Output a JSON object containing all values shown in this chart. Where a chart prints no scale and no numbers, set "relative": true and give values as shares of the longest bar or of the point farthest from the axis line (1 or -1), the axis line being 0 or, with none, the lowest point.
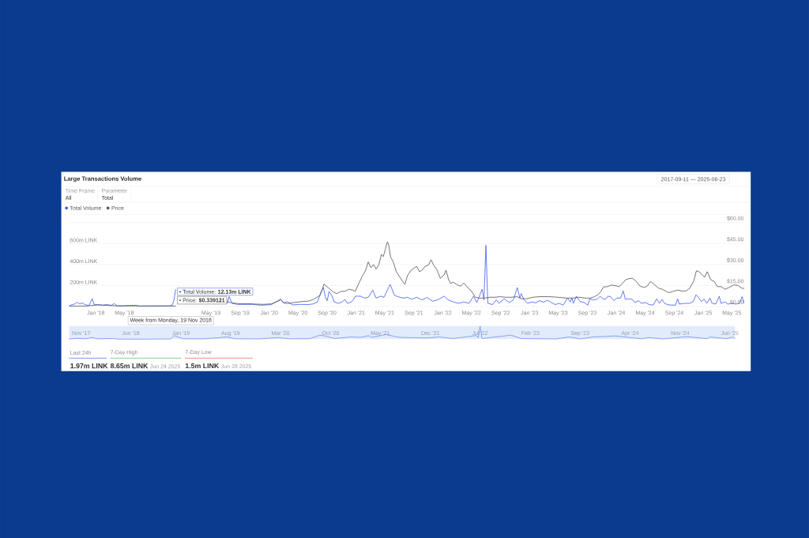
{
  "chart_data": [
    {
      "type": "line",
      "title": "Large Transactions Volume",
      "legend": "top left",
      "grid": "y",
      "annotations": [
        "Time Frame",
        "All",
        "Parameter",
        "Total",
        "2017-09-11 — 2025-06-23",
        "• Total Volume: **12.13m LINK**",
        "• Price: **$0.339121**",
        "Week from Monday, 19 Nov 2018"
      ],
      "xlim": [
        "2017-09-11",
        "2025-06-23"
      ],
      "xticks": [
        {
          "value": "2018-01",
          "label": "Jan '18"
        },
        {
          "value": "2018-05",
          "label": "May '18"
        },
        {
          "value": "2019-05",
          "label": "May '19"
        },
        {
          "value": "2019-09",
          "label": "Sep '19"
        },
        {
          "value": "2020-01",
          "label": "Jan '20"
        },
        {
          "value": "2020-05",
          "label": "May '20"
        },
        {
          "value": "2020-09",
          "label": "Sep '20"
        },
        {
          "value": "2021-01",
          "label": "Jan '21"
        },
        {
          "value": "2021-05",
          "label": "May '21"
        },
        {
          "value": "2021-09",
          "label": "Sep '21"
        },
        {
          "value": "2022-01",
          "label": "Jan '22"
        },
        {
          "value": "2022-05",
          "label": "May '22"
        },
        {
          "value": "2022-09",
          "label": "Sep '22"
        },
        {
          "value": "2023-01",
          "label": "Jan '23"
        },
        {
          "value": "2023-05",
          "label": "May '23"
        },
        {
          "value": "2023-09",
          "label": "Sep '23"
        },
        {
          "value": "2024-01",
          "label": "Jan '24"
        },
        {
          "value": "2024-05",
          "label": "May '24"
        },
        {
          "value": "2024-09",
          "label": "Sep '24"
        },
        {
          "value": "2025-01",
          "label": "Jan '25"
        },
        {
          "value": "2025-05",
          "label": "May '25"
        }
      ],
      "ylim": [
        0,
        800
      ],
      "yticks": [
        {
          "value": 0,
          "label": null
        },
        {
          "value": 200,
          "label": "200m LINK"
        },
        {
          "value": 400,
          "label": "400m LINK"
        },
        {
          "value": 600,
          "label": "600m LINK"
        },
        {
          "value": 800,
          "label": null
        }
      ],
      "y2lim": [
        0,
        60
      ],
      "y2ticks": [
        {
          "value": 0,
          "label": "$0.00"
        },
        {
          "value": 15,
          "label": "$15.00"
        },
        {
          "value": 30,
          "label": "$30.00"
        },
        {
          "value": 45,
          "label": "$45.00"
        },
        {
          "value": 60,
          "label": "$60.00"
        }
      ],
      "series": [
        {
          "name": "Total Volume",
          "color": "#3d5af1",
          "x": [
            "2017-09-11",
            "2017-10-06",
            "2017-10-14",
            "2017-10-25",
            "2017-11-05",
            "2017-11-19",
            "2017-12-04",
            "2017-12-17",
            "2017-12-24",
            "2018-01-09",
            "2018-02-01",
            "2018-02-17",
            "2018-03-06",
            "2018-03-19",
            "2018-04-02",
            "2018-06-18",
            "2018-07-04",
            "2018-11-08",
            "2018-11-19",
            "2018-11-26",
            "2018-12-03",
            "2019-03-01",
            "2019-07-08",
            "2019-07-16",
            "2019-07-29",
            "2019-08-20",
            "2019-10-25",
            "2019-11-27",
            "2020-01-10",
            "2020-02-18",
            "2020-03-01",
            "2020-03-17",
            "2020-04-08",
            "2020-05-11",
            "2020-06-13",
            "2020-07-05",
            "2020-07-22",
            "2020-08-07",
            "2020-08-16",
            "2020-08-24",
            "2020-09-01",
            "2020-09-09",
            "2020-09-20",
            "2020-10-01",
            "2020-10-18",
            "2020-11-03",
            "2020-11-14",
            "2020-11-25",
            "2020-12-12",
            "2020-12-23",
            "2020-12-28",
            "2021-01-19",
            "2021-02-05",
            "2021-02-21",
            "2021-03-12",
            "2021-03-26",
            "2021-04-14",
            "2021-04-28",
            "2021-05-24",
            "2021-06-11",
            "2021-07-03",
            "2021-07-20",
            "2021-08-05",
            "2021-08-22",
            "2021-09-13",
            "2021-10-05",
            "2021-10-27",
            "2021-11-18",
            "2021-12-10",
            "2022-01-06",
            "2022-01-23",
            "2022-02-14",
            "2022-03-08",
            "2022-03-30",
            "2022-04-21",
            "2022-05-10",
            "2022-05-24",
            "2022-06-15",
            "2022-06-23",
            "2022-07-01",
            "2022-07-09",
            "2022-07-29",
            "2022-08-14",
            "2022-08-25",
            "2022-09-16",
            "2022-10-08",
            "2022-10-25",
            "2022-11-10",
            "2022-11-21",
            "2022-11-27",
            "2022-12-08",
            "2022-12-24",
            "2023-01-10",
            "2023-01-26",
            "2023-02-12",
            "2023-02-28",
            "2023-03-17",
            "2023-04-02",
            "2023-04-19",
            "2023-05-05",
            "2023-05-22",
            "2023-06-10",
            "2023-06-21",
            "2023-06-28",
            "2023-07-04",
            "2023-07-17",
            "2023-08-01",
            "2023-08-18",
            "2023-09-03",
            "2023-09-11",
            "2023-09-25",
            "2023-10-12",
            "2023-10-25",
            "2023-11-05",
            "2023-11-16",
            "2023-11-27",
            "2023-12-08",
            "2023-12-22",
            "2024-01-02",
            "2024-01-19",
            "2024-01-30",
            "2024-02-08",
            "2024-02-21",
            "2024-03-08",
            "2024-03-19",
            "2024-04-03",
            "2024-04-16",
            "2024-05-02",
            "2024-05-19",
            "2024-06-04",
            "2024-06-19",
            "2024-06-30",
            "2024-07-11",
            "2024-07-22",
            "2024-08-04",
            "2024-08-20",
            "2024-09-06",
            "2024-09-15",
            "2024-09-22",
            "2024-10-14",
            "2024-11-05",
            "2024-11-20",
            "2024-12-01",
            "2024-12-12",
            "2024-12-23",
            "2025-01-05",
            "2025-01-16",
            "2025-01-29",
            "2025-02-07",
            "2025-02-23",
            "2025-03-09",
            "2025-03-17",
            "2025-04-03",
            "2025-04-14",
            "2025-04-30",
            "2025-05-17",
            "2025-06-02",
            "2025-06-13",
            "2025-06-23"
          ],
          "values": [
            8,
            25,
            40,
            25,
            33,
            15,
            10,
            75,
            20,
            18,
            12,
            20,
            10,
            28,
            5,
            12,
            3,
            5,
            12.13,
            60,
            160,
            null,
            33,
            95,
            30,
            20,
            20,
            12,
            18,
            70,
            33,
            45,
            15,
            20,
            18,
            25,
            43,
            143,
            181,
            93,
            55,
            143,
            106,
            43,
            30,
            43,
            68,
            30,
            43,
            73,
            98,
            98,
            80,
            88,
            156,
            80,
            98,
            88,
            211,
            106,
            88,
            80,
            88,
            68,
            88,
            63,
            86,
            50,
            63,
            98,
            63,
            43,
            30,
            43,
            30,
            98,
            38,
            164,
            63,
            584,
            30,
            18,
            63,
            30,
            73,
            38,
            63,
            181,
            80,
            123,
            63,
            30,
            43,
            35,
            55,
            40,
            60,
            38,
            18,
            30,
            13,
            80,
            43,
            80,
            30,
            98,
            48,
            38,
            13,
            73,
            63,
            68,
            98,
            73,
            68,
            98,
            93,
            55,
            80,
            80,
            148,
            68,
            73,
            68,
            38,
            55,
            30,
            38,
            18,
            13,
            73,
            30,
            68,
            30,
            18,
            13,
            13,
            73,
            23,
            30,
            30,
            48,
            111,
            88,
            48,
            68,
            30,
            80,
            30,
            23,
            98,
            30,
            43,
            23,
            30,
            23,
            30,
            93,
            30
          ]
        },
        {
          "name": "Price",
          "color": "#505050",
          "axis": "y2",
          "x": [
            "2017-09-11",
            "2017-11-19",
            "2018-01-09",
            "2018-02-17",
            "2018-04-02",
            "2018-07-04",
            "2018-11-08",
            "2018-11-19",
            "2018-12-03",
            "2019-03-01",
            "2019-07-08",
            "2019-07-29",
            "2019-09-01",
            "2019-10-03",
            "2019-11-05",
            "2019-12-08",
            "2020-01-10",
            "2020-02-07",
            "2020-02-18",
            "2020-03-04",
            "2020-03-17",
            "2020-04-14",
            "2020-05-11",
            "2020-06-13",
            "2020-07-05",
            "2020-07-22",
            "2020-08-02",
            "2020-08-13",
            "2020-08-18",
            "2020-08-29",
            "2020-09-09",
            "2020-09-26",
            "2020-10-12",
            "2020-10-29",
            "2020-11-14",
            "2020-12-01",
            "2020-12-17",
            "2020-12-28",
            "2021-01-12",
            "2021-01-25",
            "2021-02-10",
            "2021-02-21",
            "2021-03-04",
            "2021-03-15",
            "2021-03-26",
            "2021-04-06",
            "2021-04-17",
            "2021-04-25",
            "2021-05-04",
            "2021-05-12",
            "2021-05-17",
            "2021-05-26",
            "2021-06-06",
            "2021-06-19",
            "2021-07-03",
            "2021-07-20",
            "2021-07-25",
            "2021-08-05",
            "2021-08-20",
            "2021-09-04",
            "2021-09-13",
            "2021-09-24",
            "2021-10-05",
            "2021-10-18",
            "2021-11-01",
            "2021-11-12",
            "2021-11-23",
            "2021-12-08",
            "2021-12-21",
            "2022-01-06",
            "2022-01-14",
            "2022-01-25",
            "2022-02-03",
            "2022-02-14",
            "2022-03-02",
            "2022-03-17",
            "2022-03-30",
            "2022-04-15",
            "2022-05-02",
            "2022-05-18",
            "2022-06-04",
            "2022-06-26",
            "2022-07-18",
            "2022-08-09",
            "2022-08-31",
            "2022-09-22",
            "2022-10-14",
            "2022-11-10",
            "2022-11-27",
            "2022-12-19",
            "2023-01-15",
            "2023-02-12",
            "2023-03-06",
            "2023-03-28",
            "2023-04-30",
            "2023-06-02",
            "2023-07-04",
            "2023-07-26",
            "2023-08-23",
            "2023-09-14",
            "2023-10-01",
            "2023-10-17",
            "2023-10-28",
            "2023-11-08",
            "2023-11-25",
            "2023-12-11",
            "2023-12-28",
            "2024-01-13",
            "2024-01-24",
            "2024-02-10",
            "2024-02-21",
            "2024-03-08",
            "2024-03-23",
            "2024-04-10",
            "2024-04-27",
            "2024-05-10",
            "2024-05-24",
            "2024-06-10",
            "2024-06-26",
            "2024-07-13",
            "2024-07-29",
            "2024-08-09",
            "2024-08-26",
            "2024-09-17",
            "2024-10-03",
            "2024-10-20",
            "2024-11-05",
            "2024-11-22",
            "2024-12-03",
            "2024-12-14",
            "2024-12-30",
            "2025-01-07",
            "2025-01-18",
            "2025-02-01",
            "2025-02-16",
            "2025-03-01",
            "2025-03-17",
            "2025-04-03",
            "2025-04-19",
            "2025-05-11",
            "2025-05-28",
            "2025-06-13",
            "2025-06-23"
          ],
          "values": [
            0.3,
            0.3,
            1.1,
            0.8,
            0.4,
            0.4,
            0.4,
            0.339121,
            0.3,
            null,
            3.4,
            2.5,
            1.9,
            2.0,
            1.7,
            1.5,
            1.9,
            3.8,
            4.7,
            2.5,
            2.1,
            2.8,
            3.4,
            3.8,
            5.0,
            6.8,
            8.1,
            12.8,
            16.0,
            14.5,
            13.0,
            10.4,
            9.2,
            10.8,
            10.8,
            12.3,
            11.7,
            10.8,
            16.4,
            21.1,
            25.9,
            31.9,
            27.7,
            30.0,
            26.8,
            29.6,
            37.2,
            35.7,
            40.9,
            46.2,
            44.7,
            35.3,
            31.9,
            24.9,
            21.1,
            16.8,
            15.9,
            22.1,
            25.9,
            27.7,
            28.7,
            24.9,
            25.9,
            28.7,
            29.6,
            33.4,
            29.6,
            25.9,
            20.2,
            22.5,
            25.9,
            19.2,
            16.4,
            17.4,
            15.5,
            14.5,
            16.8,
            13.6,
            10.8,
            6.6,
            6.0,
            6.0,
            6.6,
            6.6,
            7.0,
            6.6,
            6.6,
            7.0,
            5.5,
            5.5,
            6.6,
            7.0,
            7.0,
            7.0,
            6.6,
            6.0,
            6.0,
            6.6,
            6.0,
            6.0,
            7.0,
            8.5,
            10.8,
            14.0,
            14.2,
            15.3,
            14.9,
            14.2,
            16.0,
            19.2,
            19.8,
            20.2,
            18.3,
            14.5,
            13.6,
            14.5,
            17.9,
            15.5,
            13.2,
            12.3,
            10.8,
            9.8,
            10.8,
            11.7,
            11.1,
            11.1,
            13.0,
            18.3,
            25.5,
            24.9,
            22.1,
            21.1,
            24.9,
            19.2,
            17.9,
            14.2,
            14.2,
            12.3,
            13.6,
            15.5,
            14.9,
            13.0,
            13.0
          ]
        }
      ]
    },
    {
      "type": "line",
      "relative": true,
      "xlim": [
        "2017-09-11",
        "2025-06-23"
      ],
      "xticks": [
        {
          "value": "2017-11",
          "label": "Nov '17"
        },
        {
          "value": "2018-06",
          "label": "Jun '18"
        },
        {
          "value": "2019-01",
          "label": "Jan '19"
        },
        {
          "value": "2019-08",
          "label": "Aug '19"
        },
        {
          "value": "2020-03",
          "label": "Mar '20"
        },
        {
          "value": "2020-10",
          "label": "Oct '20"
        },
        {
          "value": "2021-05",
          "label": "May '21"
        },
        {
          "value": "2021-12",
          "label": "Dec '21"
        },
        {
          "value": "2022-07",
          "label": "Jul '22"
        },
        {
          "value": "2023-02",
          "label": "Feb '23"
        },
        {
          "value": "2023-09",
          "label": "Sep '23"
        },
        {
          "value": "2024-04",
          "label": "Apr '24"
        },
        {
          "value": "2024-11",
          "label": "Nov '24"
        },
        {
          "value": "2025-06",
          "label": "Jun '25"
        }
      ],
      "x": [
        "2017-09-11",
        "2017-10-14",
        "2017-11-19",
        "2017-12-17",
        "2018-01-09",
        "2018-03-19",
        "2018-04-02",
        "2018-07-04",
        "2018-11-19",
        "2018-12-03",
        "2019-01-10",
        "2019-04-15",
        "2019-07-16",
        "2019-08-20",
        "2019-11-27",
        "2020-02-18",
        "2020-04-08",
        "2020-07-05",
        "2020-08-16",
        "2020-09-09",
        "2020-10-18",
        "2020-12-28",
        "2021-02-05",
        "2021-03-12",
        "2021-03-26",
        "2021-05-24",
        "2021-07-20",
        "2021-10-05",
        "2021-11-18",
        "2022-01-06",
        "2022-03-08",
        "2022-06-15",
        "2022-06-23",
        "2022-07-01",
        "2022-07-09",
        "2022-11-10",
        "2022-12-24",
        "2023-05-22",
        "2023-07-17",
        "2023-09-03",
        "2023-10-25",
        "2024-01-30",
        "2024-05-19",
        "2024-06-19",
        "2024-08-20",
        "2024-12-01",
        "2025-02-23",
        "2025-03-09",
        "2025-05-17",
        "2025-06-13",
        "2025-06-23"
      ],
      "series": [
        {
          "color": "#6a8cf0",
          "values": [
            0.01,
            0.07,
            0.03,
            0.13,
            0.03,
            0.05,
            0.01,
            0,
            0.02,
            0.27,
            0.03,
            0.03,
            0.17,
            0.03,
            0.02,
            0.12,
            0.03,
            0.04,
            0.31,
            0.24,
            0.05,
            0.17,
            0.14,
            0.27,
            0.14,
            0.36,
            0.14,
            0.11,
            0.09,
            0.17,
            0.05,
            0.28,
            0.11,
            1,
            0.05,
            0.31,
            0.05,
            0.02,
            0.17,
            0.02,
            0.17,
            0.25,
            0.03,
            0.13,
            0.02,
            0.19,
            0.04,
            0.17,
            0.04,
            0.16,
            0.05
          ]
        }
      ]
    },
    {
      "type": "other",
      "annotations": [
        "Last 24h",
        "1.97m LINK",
        "7-Day High",
        "8.65m LINK",
        "Jun 24 2025",
        "7-Day Low",
        "1.5m LINK",
        "Jun 28 2025"
      ],
      "colors": [
        "#5b7cf7",
        "#6cc27a",
        "#e8766c"
      ]
    }
  ]
}
